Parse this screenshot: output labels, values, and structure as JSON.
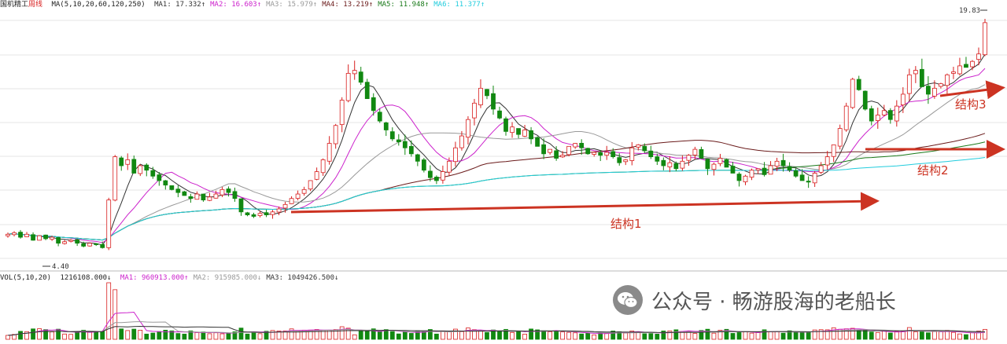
{
  "header": {
    "stock_name": "国机精工",
    "mode": "周线",
    "ma_params": "MA(5,10,20,60,120,250)",
    "ma": [
      {
        "label": "MA1:",
        "value": "17.332↑",
        "color": "#333333"
      },
      {
        "label": "MA2:",
        "value": "16.603↑",
        "color": "#cc22cc"
      },
      {
        "label": "MA3:",
        "value": "15.979↑",
        "color": "#999999"
      },
      {
        "label": "MA4:",
        "value": "13.219↑",
        "color": "#6a1a1a"
      },
      {
        "label": "MA5:",
        "value": "11.948↑",
        "color": "#1a7a1a"
      },
      {
        "label": "MA6:",
        "value": "11.377↑",
        "color": "#22ccdd"
      }
    ]
  },
  "volume_header": {
    "params": "VOL(5,10,20)",
    "vol": "1216108.000↓",
    "ma": [
      {
        "label": "MA1:",
        "value": "960913.000↑",
        "color": "#cc22cc"
      },
      {
        "label": "MA2:",
        "value": "915985.000↓",
        "color": "#999999"
      },
      {
        "label": "MA3:",
        "value": "1049426.500↓",
        "color": "#333333"
      }
    ]
  },
  "colors": {
    "up": "#d81e1e",
    "down": "#118811",
    "arrow": "#cc3322",
    "grid": "#e6e6e6"
  },
  "watermark": {
    "text": "公众号 · 畅游股海的老船长",
    "icon": "wechat-icon"
  },
  "chart_data": {
    "type": "candlestick",
    "price_range": [
      3.0,
      20.5
    ],
    "annotations": {
      "high": "19.83",
      "low": "4.40",
      "structures": [
        "结构1",
        "结构2",
        "结构3"
      ]
    },
    "close": [
      5.2,
      5.3,
      5.0,
      5.2,
      4.8,
      5.1,
      4.9,
      5.0,
      4.6,
      4.7,
      4.8,
      4.6,
      4.4,
      4.6,
      4.5,
      4.3,
      7.5,
      10.4,
      9.8,
      10.2,
      9.3,
      9.8,
      9.5,
      9.1,
      8.8,
      8.5,
      8.2,
      8.0,
      7.8,
      7.6,
      7.9,
      7.5,
      7.7,
      7.9,
      8.2,
      8.0,
      7.6,
      6.7,
      6.5,
      6.4,
      6.6,
      6.5,
      6.7,
      6.9,
      7.2,
      7.6,
      7.9,
      8.2,
      8.8,
      9.4,
      10.2,
      11.3,
      12.5,
      14.2,
      16.0,
      16.2,
      15.4,
      14.3,
      13.5,
      12.8,
      12.2,
      11.6,
      11.4,
      11.0,
      10.6,
      10.1,
      9.5,
      9.0,
      8.8,
      9.4,
      10.1,
      11.0,
      11.8,
      12.9,
      14.0,
      15.0,
      14.5,
      13.6,
      13.0,
      12.1,
      12.4,
      11.9,
      12.2,
      11.6,
      11.1,
      10.6,
      10.9,
      10.3,
      10.5,
      11.1,
      11.3,
      11.0,
      10.6,
      10.7,
      10.5,
      10.7,
      10.4,
      10.0,
      10.2,
      11.0,
      11.2,
      10.8,
      10.4,
      10.1,
      9.8,
      10.0,
      9.6,
      10.1,
      10.5,
      10.9,
      10.3,
      9.6,
      9.9,
      10.3,
      9.7,
      9.3,
      8.8,
      9.1,
      9.5,
      9.6,
      9.2,
      9.8,
      10.1,
      9.8,
      9.5,
      9.1,
      8.8,
      8.7,
      9.3,
      9.8,
      10.4,
      11.2,
      12.3,
      13.8,
      15.6,
      14.9,
      13.6,
      12.8,
      13.2,
      13.5,
      12.9,
      13.8,
      14.6,
      15.9,
      16.2,
      15.1,
      14.6,
      15.0,
      15.3,
      15.9,
      16.1,
      16.5,
      16.4,
      16.8,
      17.3,
      19.4
    ]
  }
}
